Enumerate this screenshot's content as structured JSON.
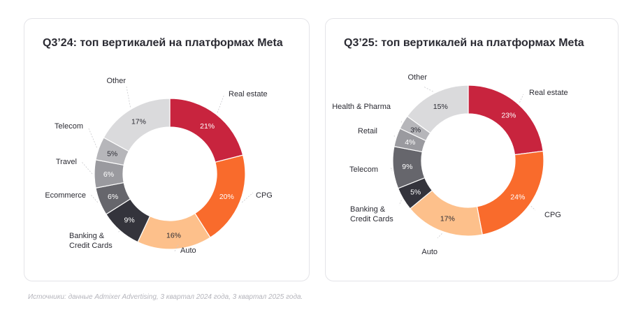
{
  "footnote": "Источники: данные Admixer Advertising, 3 квартал 2024 года, 3 квартал 2025 года.",
  "chart_data": [
    {
      "type": "pie",
      "donut": true,
      "title": "Q3’24: топ вертикалей на платформах Meta",
      "slices": [
        {
          "label": "Real estate",
          "value": 21,
          "value_label": "21%",
          "color": "#c8243e"
        },
        {
          "label": "CPG",
          "value": 20,
          "value_label": "20%",
          "color": "#f96b2c"
        },
        {
          "label": "Auto",
          "value": 16,
          "value_label": "16%",
          "color": "#fdc08b"
        },
        {
          "label": "Banking & Credit Cards",
          "value": 9,
          "value_label": "9%",
          "color": "#34343c"
        },
        {
          "label": "Ecommerce",
          "value": 6,
          "value_label": "6%",
          "color": "#66666c"
        },
        {
          "label": "Travel",
          "value": 6,
          "value_label": "6%",
          "color": "#9a9a9f"
        },
        {
          "label": "Telecom",
          "value": 5,
          "value_label": "5%",
          "color": "#b6b6ba"
        },
        {
          "label": "Other",
          "value": 17,
          "value_label": "17%",
          "color": "#dadadc"
        }
      ]
    },
    {
      "type": "pie",
      "donut": true,
      "title": "Q3’25: топ вертикалей на платформах Meta",
      "slices": [
        {
          "label": "Real estate",
          "value": 23,
          "value_label": "23%",
          "color": "#c8243e"
        },
        {
          "label": "CPG",
          "value": 24,
          "value_label": "24%",
          "color": "#f96b2c"
        },
        {
          "label": "Auto",
          "value": 17,
          "value_label": "17%",
          "color": "#fdc08b"
        },
        {
          "label": "Banking & Credit Cards",
          "value": 5,
          "value_label": "5%",
          "color": "#34343c"
        },
        {
          "label": "Telecom",
          "value": 9,
          "value_label": "9%",
          "color": "#66666c"
        },
        {
          "label": "Retail",
          "value": 4,
          "value_label": "4%",
          "color": "#9a9a9f"
        },
        {
          "label": "Health & Pharma",
          "value": 3,
          "value_label": "3%",
          "color": "#b6b6ba"
        },
        {
          "label": "Other",
          "value": 15,
          "value_label": "15%",
          "color": "#dadadc"
        }
      ]
    }
  ]
}
